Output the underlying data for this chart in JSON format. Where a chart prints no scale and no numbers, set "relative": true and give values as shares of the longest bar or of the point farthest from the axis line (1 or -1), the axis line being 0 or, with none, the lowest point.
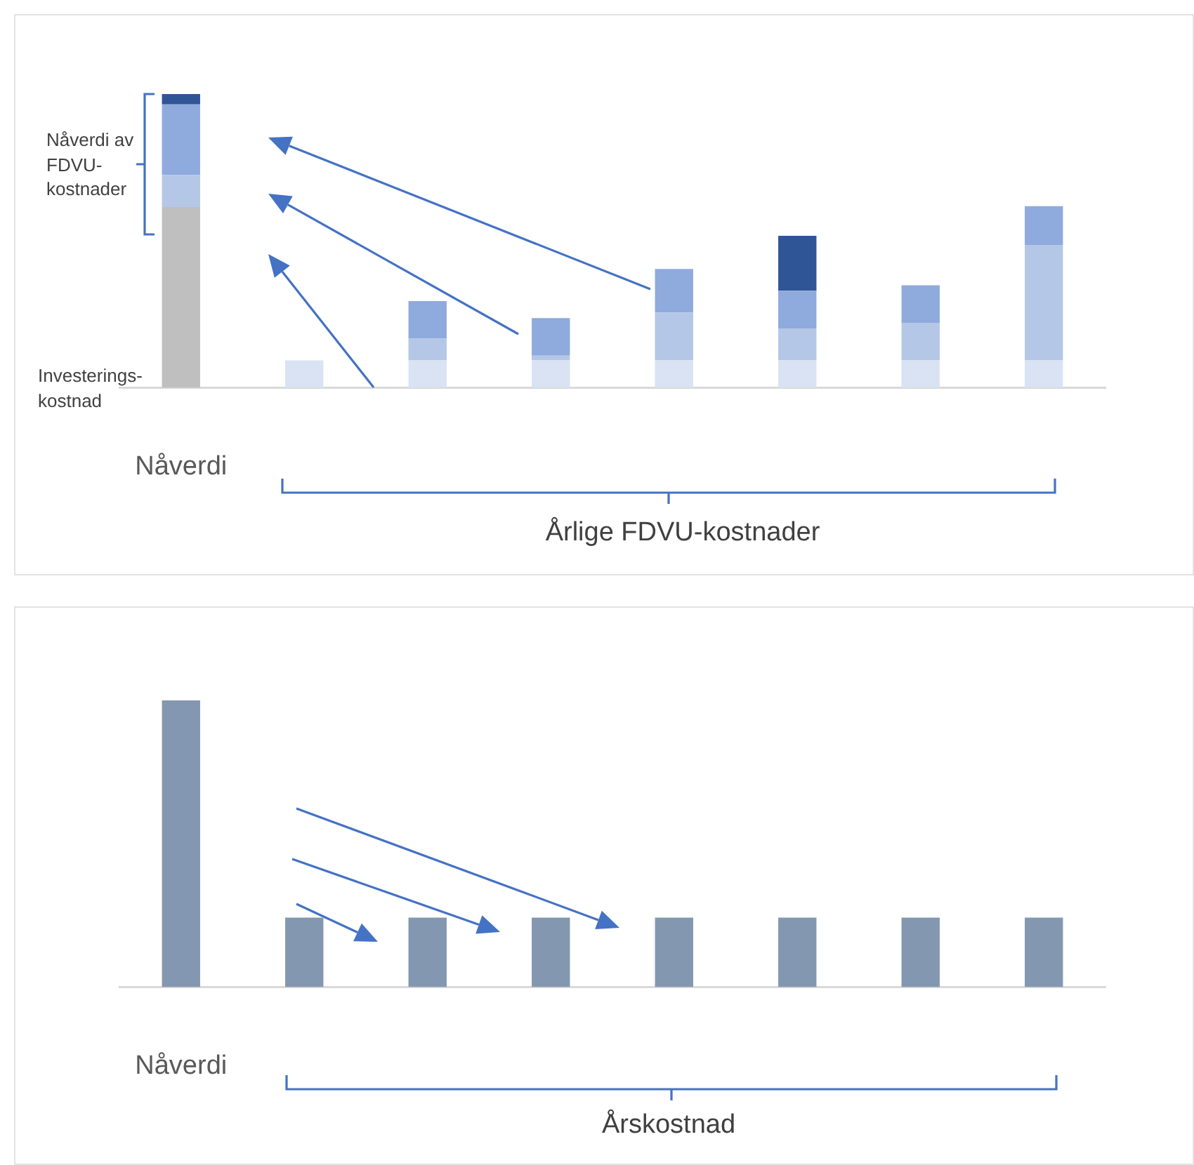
{
  "chart_data": [
    {
      "type": "bar",
      "relative": true,
      "stacked": true,
      "legend": false,
      "grid": false,
      "tick_labels": "x",
      "categories": [
        "Nåverdi",
        null,
        null,
        null,
        null,
        null,
        null,
        null
      ],
      "series": [
        {
          "color": "#bfbfbf",
          "values": [
            0.615,
            null,
            null,
            null,
            null,
            null,
            null,
            null
          ]
        },
        {
          "color": "#dae3f3",
          "values": [
            null,
            0.093,
            0.093,
            0.093,
            0.093,
            0.093,
            0.093,
            0.093
          ]
        },
        {
          "color": "#b4c7e7",
          "values": [
            0.109,
            null,
            0.074,
            0.016,
            0.163,
            0.109,
            0.128,
            0.393
          ]
        },
        {
          "color": "#8faadc",
          "values": [
            0.241,
            null,
            0.128,
            0.128,
            0.148,
            0.128,
            0.128,
            0.132
          ]
        },
        {
          "color": "#2f5597",
          "values": [
            0.035,
            null,
            null,
            null,
            null,
            0.187,
            null,
            null
          ]
        }
      ],
      "annotations": [
        "Nåverdi av FDVU-kostnader",
        "Investerings-kostnad",
        "Årlige FDVU-kostnader"
      ]
    },
    {
      "type": "bar",
      "relative": true,
      "legend": false,
      "grid": false,
      "tick_labels": "x",
      "categories": [
        "Nåverdi",
        null,
        null,
        null,
        null,
        null,
        null,
        null
      ],
      "series": [
        {
          "color": "#8497b0",
          "values": [
            1,
            0.242,
            0.242,
            0.242,
            0.242,
            0.242,
            0.242,
            0.242
          ]
        }
      ],
      "annotations": [
        "Årskostnad"
      ]
    }
  ]
}
